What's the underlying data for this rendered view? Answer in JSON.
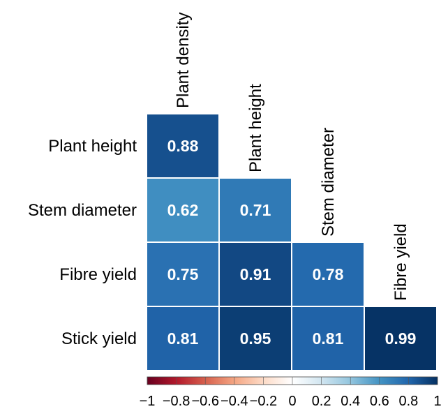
{
  "chart_data": {
    "type": "heatmap",
    "rows": [
      "Plant height",
      "Stem diameter",
      "Fibre yield",
      "Stick yield"
    ],
    "columns": [
      "Plant density",
      "Plant height",
      "Stem diameter",
      "Fibre yield"
    ],
    "cells": [
      {
        "row": "Plant height",
        "column": "Plant density",
        "value": 0.88,
        "label": "0.88"
      },
      {
        "row": "Stem diameter",
        "column": "Plant density",
        "value": 0.62,
        "label": "0.62"
      },
      {
        "row": "Stem diameter",
        "column": "Plant height",
        "value": 0.71,
        "label": "0.71"
      },
      {
        "row": "Fibre yield",
        "column": "Plant density",
        "value": 0.75,
        "label": "0.75"
      },
      {
        "row": "Fibre yield",
        "column": "Plant height",
        "value": 0.91,
        "label": "0.91"
      },
      {
        "row": "Fibre yield",
        "column": "Stem diameter",
        "value": 0.78,
        "label": "0.78"
      },
      {
        "row": "Stick yield",
        "column": "Plant density",
        "value": 0.81,
        "label": "0.81"
      },
      {
        "row": "Stick yield",
        "column": "Plant height",
        "value": 0.95,
        "label": "0.95"
      },
      {
        "row": "Stick yield",
        "column": "Stem diameter",
        "value": 0.81,
        "label": "0.81"
      },
      {
        "row": "Stick yield",
        "column": "Fibre yield",
        "value": 0.99,
        "label": "0.99"
      }
    ],
    "colorbar": {
      "range": [
        -1,
        1
      ],
      "ticks": [
        "−1",
        "−0.8",
        "−0.6",
        "−0.4",
        "−0.2",
        "0",
        "0.2",
        "0.4",
        "0.6",
        "0.8",
        "1"
      ],
      "colors": [
        "#67001f",
        "#b2182b",
        "#d6604d",
        "#f4a582",
        "#fddbc7",
        "#ffffff",
        "#d1e5f0",
        "#92c5de",
        "#4393c3",
        "#2166ac",
        "#053061"
      ]
    }
  }
}
